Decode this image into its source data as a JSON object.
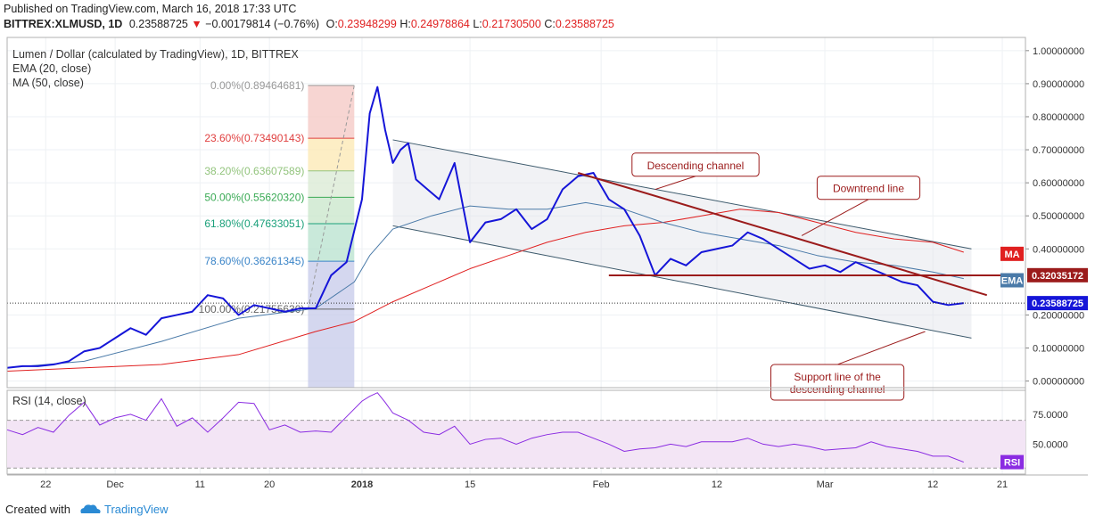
{
  "header": {
    "published": "Published on TradingView.com, March 16, 2018 17:33 UTC",
    "symbol": "BITTREX:XLMUSD, 1D",
    "last": "0.23588725",
    "change": "−0.00179814 (−0.76%)",
    "o_label": "O:",
    "o_val": "0.23948299",
    "h_label": "H:",
    "h_val": "0.24978864",
    "l_label": "L:",
    "l_val": "0.21730500",
    "c_label": "C:",
    "c_val": "0.23588725"
  },
  "legend": {
    "title": "Lumen / Dollar (calculated by TradingView), 1D, BITTREX",
    "ema": "EMA (20, close)",
    "ma": "MA (50, close)",
    "rsi": "RSI (14, close)"
  },
  "colors": {
    "price": "#1515d8",
    "ema": "#4a7aa8",
    "ma": "#e02020",
    "annotation": "#9b1b1b",
    "rsi": "#8a2be2",
    "tv_blue": "#2a8ad4"
  },
  "footer": {
    "created": "Created with",
    "brand": "TradingView"
  },
  "chart_data": {
    "type": "line",
    "xaxis_ticks": [
      "22",
      "Dec",
      "11",
      "20",
      "2018",
      "15",
      "Feb",
      "12",
      "Mar",
      "12",
      "21"
    ],
    "yaxis_ticks": [
      "1.00000000",
      "0.90000000",
      "0.80000000",
      "0.70000000",
      "0.60000000",
      "0.50000000",
      "0.40000000",
      "0.20000000",
      "0.10000000",
      "0.00000000"
    ],
    "ylim": [
      -0.02,
      1.04
    ],
    "xlim": [
      0,
      132
    ],
    "tick_days": [
      5,
      14,
      25,
      34,
      46,
      60,
      77,
      92,
      106,
      120,
      129
    ],
    "price": {
      "x": [
        0,
        2,
        4,
        6,
        8,
        10,
        12,
        14,
        16,
        18,
        20,
        22,
        24,
        26,
        28,
        30,
        32,
        34,
        36,
        38,
        40,
        42,
        44,
        46,
        47,
        48,
        49,
        50,
        51,
        52,
        53,
        54,
        56,
        58,
        60,
        62,
        64,
        66,
        68,
        70,
        72,
        74,
        76,
        78,
        80,
        82,
        84,
        86,
        88,
        90,
        92,
        94,
        96,
        98,
        100,
        102,
        104,
        106,
        108,
        110,
        112,
        114,
        116,
        118,
        120,
        122,
        124
      ],
      "y": [
        0.04,
        0.045,
        0.045,
        0.05,
        0.06,
        0.09,
        0.1,
        0.13,
        0.16,
        0.14,
        0.19,
        0.2,
        0.21,
        0.26,
        0.25,
        0.2,
        0.23,
        0.22,
        0.21,
        0.22,
        0.22,
        0.32,
        0.36,
        0.55,
        0.81,
        0.89,
        0.76,
        0.66,
        0.7,
        0.72,
        0.61,
        0.59,
        0.55,
        0.66,
        0.42,
        0.48,
        0.49,
        0.52,
        0.46,
        0.49,
        0.58,
        0.62,
        0.63,
        0.55,
        0.52,
        0.44,
        0.32,
        0.37,
        0.35,
        0.39,
        0.4,
        0.41,
        0.45,
        0.43,
        0.4,
        0.37,
        0.34,
        0.35,
        0.33,
        0.36,
        0.34,
        0.32,
        0.3,
        0.29,
        0.24,
        0.23,
        0.236
      ]
    },
    "ema": {
      "x": [
        0,
        10,
        20,
        30,
        40,
        45,
        47,
        50,
        55,
        60,
        65,
        70,
        75,
        80,
        85,
        90,
        95,
        100,
        105,
        110,
        115,
        120,
        124
      ],
      "y": [
        0.04,
        0.06,
        0.12,
        0.19,
        0.22,
        0.3,
        0.38,
        0.46,
        0.5,
        0.53,
        0.52,
        0.52,
        0.54,
        0.52,
        0.48,
        0.45,
        0.43,
        0.41,
        0.38,
        0.36,
        0.35,
        0.33,
        0.31
      ]
    },
    "ma": {
      "x": [
        0,
        10,
        20,
        30,
        40,
        45,
        50,
        55,
        60,
        65,
        70,
        75,
        80,
        85,
        90,
        95,
        100,
        105,
        110,
        115,
        120,
        124
      ],
      "y": [
        0.03,
        0.04,
        0.05,
        0.08,
        0.15,
        0.18,
        0.24,
        0.29,
        0.34,
        0.38,
        0.42,
        0.45,
        0.47,
        0.48,
        0.5,
        0.52,
        0.51,
        0.48,
        0.45,
        0.43,
        0.42,
        0.39
      ]
    },
    "fib_levels": [
      {
        "label": "0.00%(0.89464681)",
        "value": 0.89464681,
        "color": "#999999"
      },
      {
        "label": "23.60%(0.73490143)",
        "value": 0.73490143,
        "color": "#e04040"
      },
      {
        "label": "38.20%(0.63607589)",
        "value": 0.63607589,
        "color": "#93c47d"
      },
      {
        "label": "50.00%(0.55620320)",
        "value": 0.5562032,
        "color": "#3aaa55"
      },
      {
        "label": "61.80%(0.47633051)",
        "value": 0.47633051,
        "color": "#1aa07a"
      },
      {
        "label": "78.60%(0.36261345)",
        "value": 0.36261345,
        "color": "#3a84c8"
      },
      {
        "label": "100.00%(0.21755630)",
        "value": 0.2175563,
        "color": "#666666"
      }
    ],
    "fib_x": [
      39,
      45
    ],
    "channel": {
      "upper": [
        [
          50,
          0.73
        ],
        [
          125,
          0.4
        ]
      ],
      "lower": [
        [
          50,
          0.47
        ],
        [
          125,
          0.13
        ]
      ]
    },
    "downtrend_line": [
      [
        74,
        0.63
      ],
      [
        127,
        0.26
      ]
    ],
    "support_line": [
      [
        78,
        0.32
      ],
      [
        129,
        0.32
      ]
    ],
    "annotations": [
      {
        "text": [
          "Descending channel"
        ],
        "box": [
          81,
          0.69
        ],
        "target": [
          84,
          0.58
        ]
      },
      {
        "text": [
          "Downtrend line"
        ],
        "box": [
          105,
          0.62
        ],
        "target": [
          103,
          0.44
        ]
      },
      {
        "text": [
          "Support line of the",
          "descending channel"
        ],
        "box": [
          99,
          0.05
        ],
        "target": [
          119,
          0.15
        ]
      }
    ],
    "badges": [
      {
        "text": "MA",
        "value": 0.385,
        "color": "#e02020"
      },
      {
        "text": "0.32035172",
        "value": 0.32035172,
        "color": "#9b1b1b"
      },
      {
        "text": "EMA",
        "value": 0.305,
        "color": "#4a7aa8"
      },
      {
        "text": "0.23588725",
        "value": 0.23588725,
        "color": "#1515d8"
      }
    ],
    "rsi": {
      "yticks": [
        "75.0000",
        "50.0000"
      ],
      "ylim": [
        25,
        95
      ],
      "levels": [
        70,
        30
      ],
      "badge": "RSI",
      "x": [
        0,
        2,
        4,
        6,
        8,
        10,
        12,
        14,
        16,
        18,
        20,
        22,
        24,
        26,
        28,
        30,
        32,
        34,
        36,
        38,
        40,
        42,
        44,
        46,
        47,
        48,
        49,
        50,
        52,
        54,
        56,
        58,
        60,
        62,
        64,
        66,
        68,
        70,
        72,
        74,
        76,
        78,
        80,
        82,
        84,
        86,
        88,
        90,
        92,
        94,
        96,
        98,
        100,
        102,
        104,
        106,
        108,
        110,
        112,
        114,
        116,
        118,
        120,
        122,
        124
      ],
      "y": [
        62,
        58,
        64,
        60,
        74,
        85,
        66,
        72,
        75,
        70,
        88,
        65,
        72,
        60,
        72,
        85,
        84,
        62,
        66,
        60,
        61,
        60,
        73,
        86,
        90,
        93,
        85,
        76,
        70,
        60,
        58,
        65,
        50,
        54,
        55,
        50,
        55,
        58,
        60,
        60,
        55,
        50,
        44,
        46,
        47,
        50,
        48,
        52,
        52,
        52,
        55,
        50,
        48,
        50,
        48,
        45,
        46,
        47,
        52,
        48,
        46,
        44,
        40,
        40,
        35
      ]
    }
  }
}
